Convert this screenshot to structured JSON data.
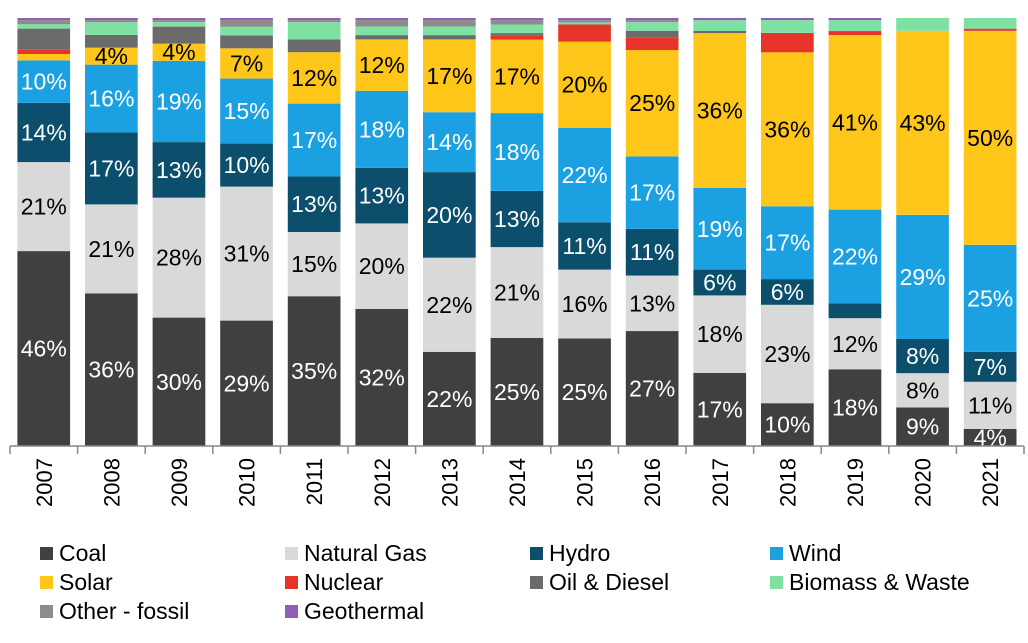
{
  "chart_data": {
    "type": "bar",
    "stacked": true,
    "normalized": true,
    "categories": [
      "2007",
      "2008",
      "2009",
      "2010",
      "2011",
      "2012",
      "2013",
      "2014",
      "2015",
      "2016",
      "2017",
      "2018",
      "2019",
      "2020",
      "2021"
    ],
    "series": [
      {
        "name": "Coal",
        "color": "#404040",
        "label_color": "#ffffff",
        "values": [
          46,
          36,
          30,
          29,
          35,
          32,
          22,
          25,
          25,
          27,
          17,
          10,
          18,
          9,
          4
        ],
        "labels": [
          "46%",
          "36%",
          "30%",
          "29%",
          "35%",
          "32%",
          "22%",
          "25%",
          "25%",
          "27%",
          "17%",
          "10%",
          "18%",
          "9%",
          "4%"
        ]
      },
      {
        "name": "Natural Gas",
        "color": "#d9d9d9",
        "label_color": "#000000",
        "values": [
          21,
          21,
          28,
          31,
          15,
          20,
          22,
          21,
          16,
          13,
          18,
          23,
          12,
          8,
          11
        ],
        "labels": [
          "21%",
          "21%",
          "28%",
          "31%",
          "15%",
          "20%",
          "22%",
          "21%",
          "16%",
          "13%",
          "18%",
          "23%",
          "12%",
          "8%",
          "11%"
        ]
      },
      {
        "name": "Hydro",
        "color": "#0b4f6c",
        "label_color": "#ffffff",
        "values": [
          14,
          17,
          13,
          10,
          13,
          13,
          20,
          13,
          11,
          11,
          6,
          6,
          3.5,
          8,
          7
        ],
        "labels": [
          "14%",
          "17%",
          "13%",
          "10%",
          "13%",
          "13%",
          "20%",
          "13%",
          "11%",
          "11%",
          "6%",
          "6%",
          "",
          "8%",
          "7%"
        ]
      },
      {
        "name": "Wind",
        "color": "#1ba1e2",
        "label_color": "#ffffff",
        "values": [
          10,
          16,
          19,
          15,
          17,
          18,
          14,
          18,
          22,
          17,
          19,
          17,
          22,
          29,
          25
        ],
        "labels": [
          "10%",
          "16%",
          "19%",
          "15%",
          "17%",
          "18%",
          "14%",
          "18%",
          "22%",
          "17%",
          "19%",
          "17%",
          "22%",
          "29%",
          "25%"
        ]
      },
      {
        "name": "Solar",
        "color": "#ffc61a",
        "label_color": "#000000",
        "values": [
          1.5,
          4,
          4,
          7,
          12,
          12,
          17,
          17,
          20,
          25,
          36,
          36,
          41,
          43,
          50
        ],
        "labels": [
          "",
          "4%",
          "4%",
          "7%",
          "12%",
          "12%",
          "17%",
          "17%",
          "20%",
          "25%",
          "36%",
          "36%",
          "41%",
          "43%",
          "50%"
        ]
      },
      {
        "name": "Nuclear",
        "color": "#e8332a",
        "label_color": "#ffffff",
        "values": [
          1,
          0,
          0,
          0,
          0,
          0,
          0,
          1,
          4,
          3,
          0,
          4.5,
          0.8,
          0,
          0.5
        ],
        "labels": [
          "",
          "",
          "",
          "",
          "",
          "",
          "",
          "",
          "",
          "",
          "",
          "",
          "",
          "",
          ""
        ]
      },
      {
        "name": "Oil & Diesel",
        "color": "#6b6b6b",
        "label_color": "#ffffff",
        "values": [
          5,
          3,
          4,
          3,
          3,
          1,
          1,
          0.5,
          0,
          1.5,
          0.5,
          0,
          0.2,
          0,
          0
        ],
        "labels": [
          "",
          "",
          "",
          "",
          "",
          "",
          "",
          "",
          "",
          "",
          "",
          "",
          "",
          "",
          ""
        ]
      },
      {
        "name": "Biomass & Waste",
        "color": "#7ee0a3",
        "label_color": "#000000",
        "values": [
          1,
          3,
          1,
          2,
          4,
          2,
          2,
          2,
          0.5,
          2,
          2.5,
          3,
          2.5,
          3,
          2.5
        ],
        "labels": [
          "",
          "",
          "",
          "",
          "",
          "",
          "",
          "",
          "",
          "",
          "",
          "",
          "",
          "",
          ""
        ]
      },
      {
        "name": "Other - fossil",
        "color": "#8c8c8c",
        "label_color": "#ffffff",
        "values": [
          1,
          0.5,
          0.5,
          1.5,
          0.5,
          1.5,
          1.5,
          1,
          0.5,
          0.5,
          0,
          0,
          0,
          0,
          0
        ],
        "labels": [
          "",
          "",
          "",
          "",
          "",
          "",
          "",
          "",
          "",
          "",
          "",
          "",
          "",
          "",
          ""
        ]
      },
      {
        "name": "Geothermal",
        "color": "#8e5fb5",
        "label_color": "#ffffff",
        "values": [
          0.5,
          0.5,
          0.5,
          0.5,
          0.5,
          0.5,
          0.5,
          0.5,
          0.5,
          0.5,
          0.5,
          0.5,
          0.5,
          0,
          0
        ],
        "labels": [
          "",
          "",
          "",
          "",
          "",
          "",
          "",
          "",
          "",
          "",
          "",
          "",
          "",
          "",
          ""
        ]
      }
    ],
    "title": "",
    "xlabel": "",
    "ylabel": "",
    "ylim": [
      0,
      100
    ],
    "grid": false,
    "legend_position": "bottom"
  }
}
